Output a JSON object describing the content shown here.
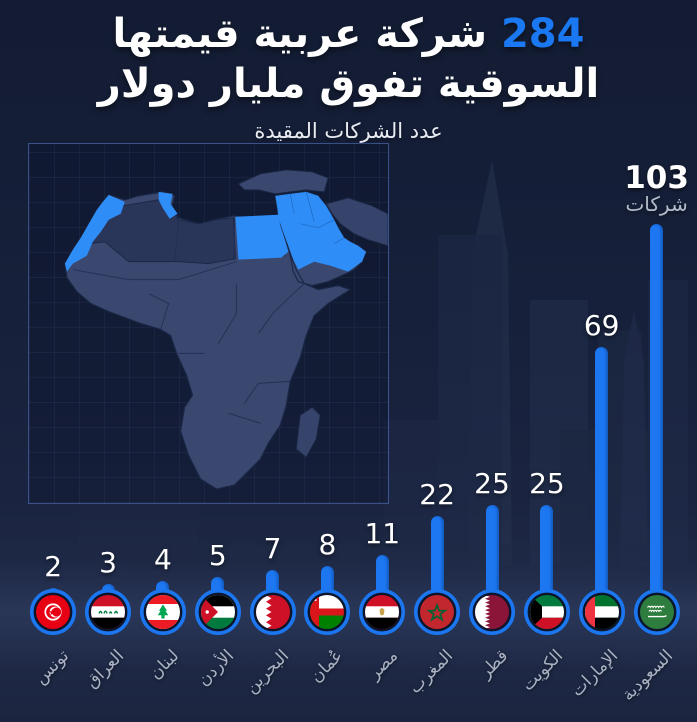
{
  "header": {
    "title_number": "284",
    "title_line1_rest": "شركة عربية قيمتها",
    "title_line2": "السوقية تفوق مليار دولار",
    "subtitle": "عدد الشركات المقيدة"
  },
  "chart_data": {
    "type": "bar",
    "title": "284 شركة عربية قيمتها السوقية تفوق مليار دولار",
    "xlabel": "",
    "ylabel": "عدد الشركات المقيدة",
    "ylim": [
      0,
      110
    ],
    "grid": false,
    "legend": "none",
    "unit_label": "شركات",
    "categories": [
      "تونس",
      "العراق",
      "لبنان",
      "الأردن",
      "البحرين",
      "عُمان",
      "مصر",
      "المغرب",
      "قطر",
      "الكويت",
      "الإمارات",
      "السعودية"
    ],
    "values": [
      2,
      3,
      4,
      5,
      7,
      8,
      11,
      22,
      25,
      25,
      69,
      103
    ],
    "countries": [
      {
        "name": "تونس",
        "value": 2,
        "flag": "tunisia"
      },
      {
        "name": "العراق",
        "value": 3,
        "flag": "iraq"
      },
      {
        "name": "لبنان",
        "value": 4,
        "flag": "lebanon"
      },
      {
        "name": "الأردن",
        "value": 5,
        "flag": "jordan"
      },
      {
        "name": "البحرين",
        "value": 7,
        "flag": "bahrain"
      },
      {
        "name": "عُمان",
        "value": 8,
        "flag": "oman"
      },
      {
        "name": "مصر",
        "value": 11,
        "flag": "egypt"
      },
      {
        "name": "المغرب",
        "value": 22,
        "flag": "morocco"
      },
      {
        "name": "قطر",
        "value": 25,
        "flag": "qatar"
      },
      {
        "name": "الكويت",
        "value": 25,
        "flag": "kuwait"
      },
      {
        "name": "الإمارات",
        "value": 69,
        "flag": "uae"
      },
      {
        "name": "السعودية",
        "value": 103,
        "flag": "saudi-arabia",
        "suffix": "شركات"
      }
    ]
  },
  "map": {
    "name": "arab-world-highlight-map",
    "highlighted_regions": [
      "المغرب",
      "تونس",
      "مصر",
      "السعودية",
      "الخليج",
      "الأردن",
      "لبنان",
      "العراق"
    ],
    "highlight_color": "#2F8DF7",
    "land_color": "#3A4870",
    "dark_land_color": "#2A3658"
  },
  "colors": {
    "accent_blue": "#1a78f3",
    "bar_blue": "#1c77f1",
    "background_navy": "#16203a",
    "text_muted": "#a9b1c3",
    "value_text": "#ffffff"
  }
}
